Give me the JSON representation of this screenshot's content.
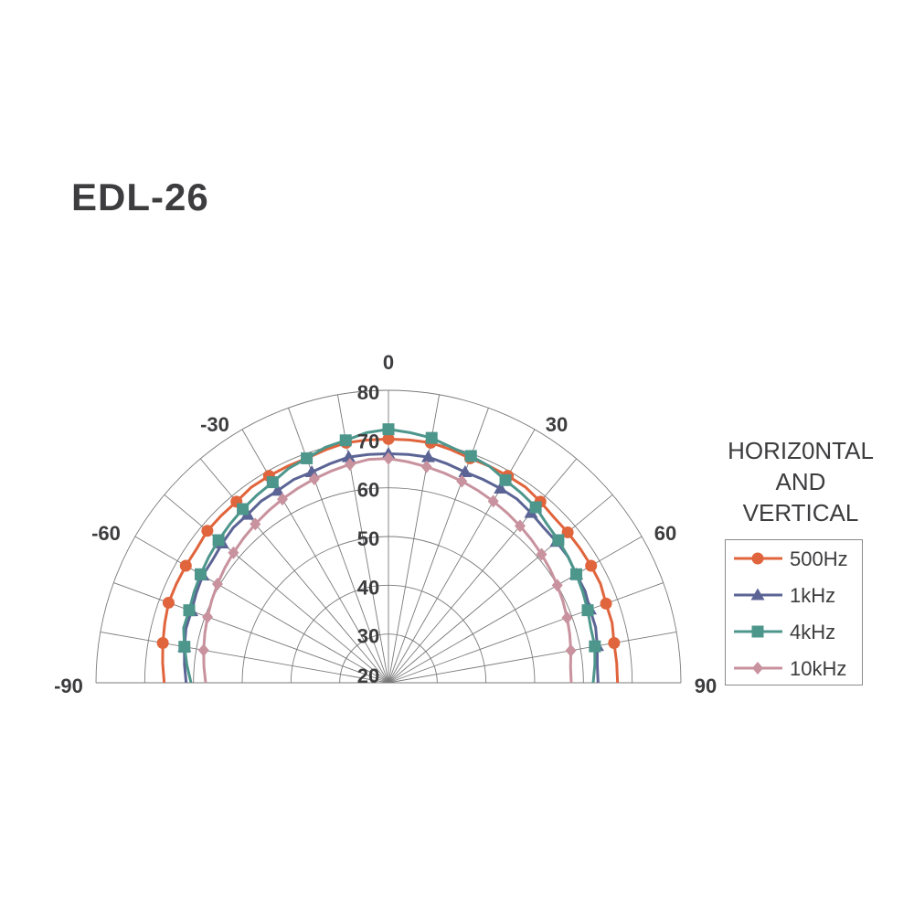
{
  "chart_data": {
    "type": "polar-line",
    "title": "EDL-26",
    "subtitle_lines": [
      "HORIZ0NTAL",
      "AND",
      "VERTICAL"
    ],
    "angle_ticks": [
      -90,
      -60,
      -30,
      0,
      30,
      60,
      90
    ],
    "radial_ticks": [
      20,
      30,
      40,
      50,
      60,
      70,
      80
    ],
    "rlim": [
      20,
      80
    ],
    "theta_range": [
      -90,
      90
    ],
    "theta_step": 10,
    "grid": true,
    "legend_placement": "right",
    "angles": [
      -90,
      -85,
      -80,
      -75,
      -70,
      -65,
      -60,
      -55,
      -50,
      -45,
      -40,
      -35,
      -30,
      -25,
      -20,
      -15,
      -10,
      -5,
      0,
      5,
      10,
      15,
      20,
      25,
      30,
      35,
      40,
      45,
      50,
      55,
      60,
      65,
      70,
      75,
      80,
      85,
      90
    ],
    "series": [
      {
        "name": "500Hz",
        "color": "#e0643c",
        "marker": "circle",
        "values": [
          66,
          66.5,
          67,
          67.5,
          68,
          68,
          68,
          68,
          68.5,
          68.5,
          68.5,
          69,
          69,
          69,
          69,
          69.5,
          70,
          70,
          70,
          70,
          70,
          69.5,
          69,
          69,
          69,
          69,
          68.5,
          68,
          68,
          68,
          68,
          68,
          67.5,
          67.5,
          67,
          67,
          67
        ]
      },
      {
        "name": "1kHz",
        "color": "#5b6494",
        "marker": "triangle",
        "values": [
          61.5,
          62,
          62.5,
          63,
          63,
          63.5,
          64,
          64,
          64.5,
          65,
          65,
          65.5,
          65.5,
          66,
          66,
          66.5,
          67,
          67,
          67,
          67,
          67,
          66.5,
          66,
          66,
          66,
          66,
          65.5,
          65,
          65,
          65,
          64.5,
          64.5,
          64,
          64,
          63.5,
          63,
          63
        ]
      },
      {
        "name": "4kHz",
        "color": "#4d968c",
        "marker": "square",
        "values": [
          60.5,
          61.5,
          62.5,
          63.5,
          63.5,
          64,
          64.5,
          65,
          65.5,
          66,
          66.5,
          67,
          67.5,
          68.5,
          69,
          70,
          70.5,
          71.5,
          72,
          71.5,
          71,
          70,
          69.5,
          69,
          68,
          67.5,
          67,
          66,
          65.5,
          65,
          64.5,
          64,
          63.5,
          63,
          63,
          62.5,
          62
        ]
      },
      {
        "name": "10kHz",
        "color": "#c8929e",
        "marker": "diamond",
        "values": [
          57.5,
          58,
          58.5,
          59,
          59.5,
          60,
          60.5,
          61,
          61.5,
          62,
          62.5,
          63,
          63.5,
          64,
          64.5,
          65,
          65.5,
          66,
          66,
          65.5,
          65,
          64.5,
          64,
          63.5,
          63,
          62.5,
          62,
          61.5,
          61,
          60.5,
          60,
          59.5,
          59,
          58.5,
          58,
          57.5,
          57.5
        ]
      }
    ]
  }
}
